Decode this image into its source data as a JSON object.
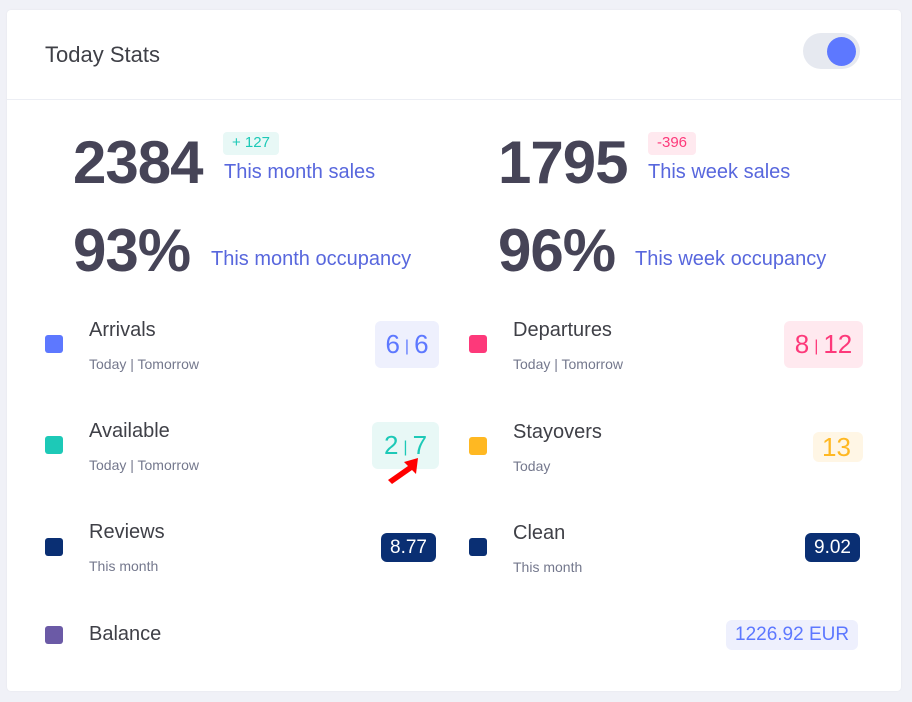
{
  "header": {
    "title": "Today Stats",
    "toggle_on": true
  },
  "stats": [
    {
      "value": "2384",
      "delta": "+ 127",
      "label": "This month sales"
    },
    {
      "value": "1795",
      "delta": "-396",
      "label": "This week sales"
    },
    {
      "value": "93%",
      "label": "This month occupancy"
    },
    {
      "value": "96%",
      "label": "This week occupancy"
    }
  ],
  "items": {
    "arrivals": {
      "name": "Arrivals",
      "sub": "Today | Tomorrow",
      "today": "6",
      "tomorrow": "6",
      "sep": "|",
      "color": "#5d78ff"
    },
    "departures": {
      "name": "Departures",
      "sub": "Today | Tomorrow",
      "today": "8",
      "tomorrow": "12",
      "sep": "|",
      "color": "#fd397a"
    },
    "available": {
      "name": "Available",
      "sub": "Today | Tomorrow",
      "today": "2",
      "tomorrow": "7",
      "sep": "|",
      "color": "#1dc9b7"
    },
    "stayovers": {
      "name": "Stayovers",
      "sub": "Today",
      "value": "13",
      "color": "#ffb822"
    },
    "reviews": {
      "name": "Reviews",
      "sub": "This month",
      "value": "8.77",
      "color": "#0a2f73"
    },
    "clean": {
      "name": "Clean",
      "sub": "This month",
      "value": "9.02",
      "color": "#0a2f73"
    },
    "balance": {
      "name": "Balance",
      "value": "1226.92 EUR",
      "color": "#6b5aa6"
    }
  }
}
